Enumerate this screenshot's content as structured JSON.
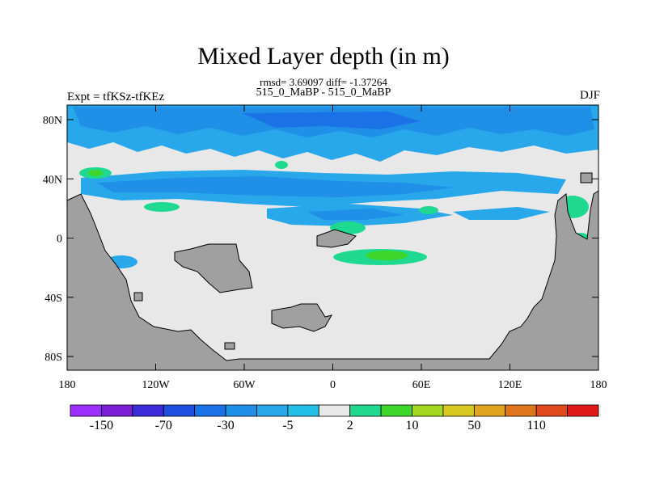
{
  "title": "Mixed Layer depth (in m)",
  "stats": "rmsd= 3.69097 diff= -1.37264",
  "runs": "515_0_MaBP - 515_0_MaBP",
  "expt": "Expt = tfKSz-tfKEz",
  "season": "DJF",
  "chart_data": {
    "type": "heatmap",
    "x_ticks": [
      "180",
      "120W",
      "60W",
      "0",
      "60E",
      "120E",
      "180"
    ],
    "y_ticks": [
      "80N",
      "40N",
      "0",
      "40S",
      "80S"
    ],
    "colorbar": {
      "labels": [
        "-150",
        "-70",
        "-30",
        "-5",
        "2",
        "10",
        "50",
        "110"
      ],
      "colors": [
        "#9b30ff",
        "#7a1fd6",
        "#3d2ad9",
        "#1f4fe0",
        "#1a72e6",
        "#1f8fe8",
        "#28a8ea",
        "#22bfe6",
        "#e8e8e8",
        "#1ed98f",
        "#3ed62a",
        "#a3d61e",
        "#d6c81e",
        "#e0a41e",
        "#e0761e",
        "#e04a1e",
        "#e01a1a"
      ]
    },
    "legend_note": "Land shown in gray"
  }
}
